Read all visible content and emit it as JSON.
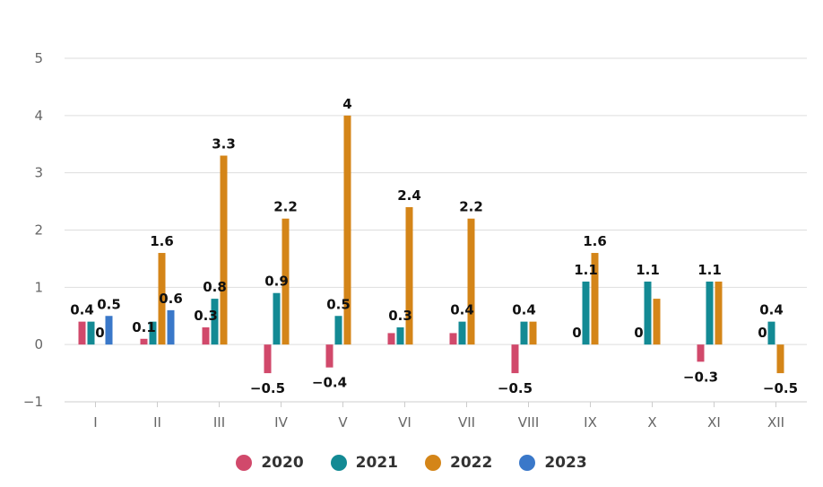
{
  "chart_data": {
    "type": "bar",
    "categories": [
      "I",
      "II",
      "III",
      "IV",
      "V",
      "VI",
      "VII",
      "VIII",
      "IX",
      "X",
      "XI",
      "XII"
    ],
    "ylim": [
      -1,
      5
    ],
    "yticks": [
      "−1",
      "0",
      "1",
      "2",
      "3",
      "4",
      "5"
    ],
    "grid": true,
    "legend_position": "bottom",
    "series": [
      {
        "name": "2020",
        "color": "#d1496b",
        "values": [
          0.4,
          0.1,
          0.3,
          -0.5,
          -0.4,
          0.2,
          0.2,
          -0.5,
          null,
          null,
          -0.3,
          null
        ],
        "labels": [
          "0.4",
          "0.1",
          "0.3",
          "−0.5",
          "−0.4",
          "",
          "",
          "−0.5",
          "",
          "",
          "−0.3",
          ""
        ]
      },
      {
        "name": "2021",
        "color": "#138a94",
        "values": [
          0.4,
          0.4,
          0.8,
          0.9,
          0.5,
          0.3,
          0.4,
          0.4,
          1.1,
          1.1,
          1.1,
          0.4
        ],
        "labels": [
          "",
          "",
          "0.8",
          "0.9",
          "0.5",
          "0.3",
          "0.4",
          "0.4",
          "1.1",
          "1.1",
          "1.1",
          "0.4"
        ]
      },
      {
        "name": "2022",
        "color": "#d48518",
        "values": [
          null,
          1.6,
          3.3,
          2.2,
          4,
          2.4,
          2.2,
          0.4,
          1.6,
          0.8,
          1.1,
          -0.5
        ],
        "labels": [
          "",
          "1.6",
          "3.3",
          "2.2",
          "4",
          "2.4",
          "2.2",
          "",
          "1.6",
          "",
          "",
          "−0.5"
        ]
      },
      {
        "name": "2023",
        "color": "#3a78c9",
        "values": [
          0.5,
          0.6,
          null,
          null,
          null,
          null,
          null,
          null,
          null,
          null,
          null,
          null
        ],
        "labels": [
          "0.5",
          "0.6",
          "",
          "",
          "",
          "",
          "",
          "",
          "",
          "",
          "",
          ""
        ]
      }
    ],
    "extra_labels": [
      {
        "category": 0,
        "series": 2,
        "text": "0"
      },
      {
        "category": 8,
        "series": 0,
        "text": "0"
      },
      {
        "category": 9,
        "series": 0,
        "text": "0"
      },
      {
        "category": 11,
        "series": 0,
        "text": "0"
      }
    ]
  }
}
